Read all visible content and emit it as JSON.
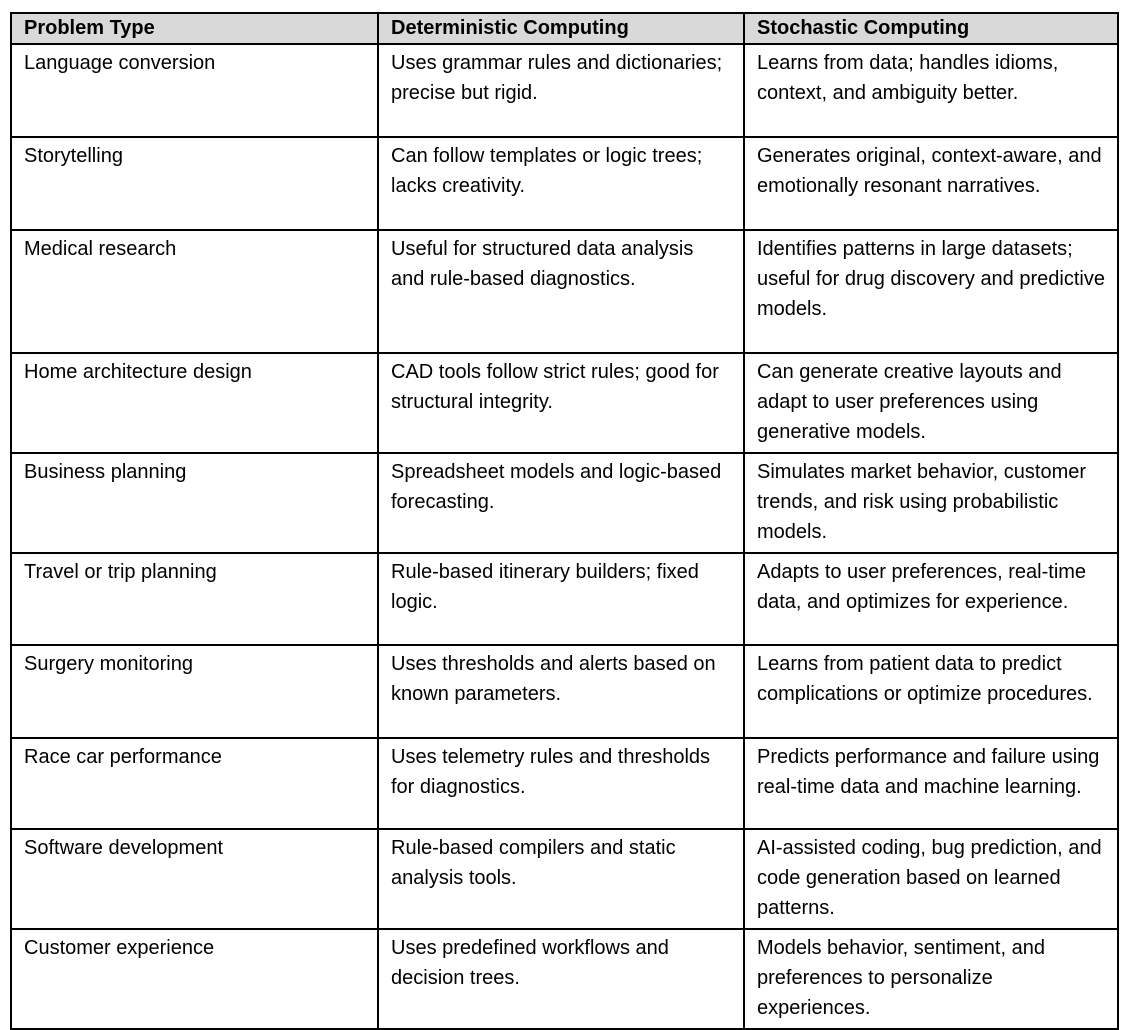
{
  "table": {
    "colors": {
      "header_bg": "#d9d9d9",
      "border": "#000000",
      "text": "#000000",
      "page_bg": "#ffffff"
    },
    "headers": {
      "problem": "Problem Type",
      "deterministic": "Deterministic Computing",
      "stochastic": "Stochastic Computing"
    },
    "rows": [
      {
        "problem": "Language conversion",
        "deterministic": "Uses grammar rules and dictionaries; precise but rigid.",
        "stochastic": "Learns from data; handles idioms, context, and ambiguity better."
      },
      {
        "problem": "Storytelling",
        "deterministic": "Can follow templates or logic trees; lacks creativity.",
        "stochastic": "Generates original, context-aware, and emotionally resonant narratives."
      },
      {
        "problem": "Medical research",
        "deterministic": "Useful for structured data analysis and rule-based diagnostics.",
        "stochastic": "Identifies patterns in large datasets; useful for drug discovery and predictive models."
      },
      {
        "problem": "Home architecture design",
        "deterministic": "CAD tools follow strict rules; good for structural integrity.",
        "stochastic": "Can generate creative layouts and adapt to user preferences using generative models."
      },
      {
        "problem": "Business planning",
        "deterministic": "Spreadsheet models and logic-based forecasting.",
        "stochastic": "Simulates market behavior, customer trends, and risk using probabilistic models."
      },
      {
        "problem": "Travel or trip planning",
        "deterministic": "Rule-based itinerary builders; fixed logic.",
        "stochastic": "Adapts to user preferences, real-time data, and optimizes for experience."
      },
      {
        "problem": "Surgery monitoring",
        "deterministic": "Uses thresholds and alerts based on known parameters.",
        "stochastic": "Learns from patient data to predict complications or optimize procedures."
      },
      {
        "problem": "Race car performance",
        "deterministic": "Uses telemetry rules and thresholds for diagnostics.",
        "stochastic": "Predicts performance and failure using real-time data and machine learning."
      },
      {
        "problem": "Software development",
        "deterministic": "Rule-based compilers and static analysis tools.",
        "stochastic": "AI-assisted coding, bug prediction, and code generation based on learned patterns."
      },
      {
        "problem": "Customer experience",
        "deterministic": "Uses predefined workflows and decision trees.",
        "stochastic": "Models behavior, sentiment, and preferences to personalize experiences."
      }
    ]
  }
}
